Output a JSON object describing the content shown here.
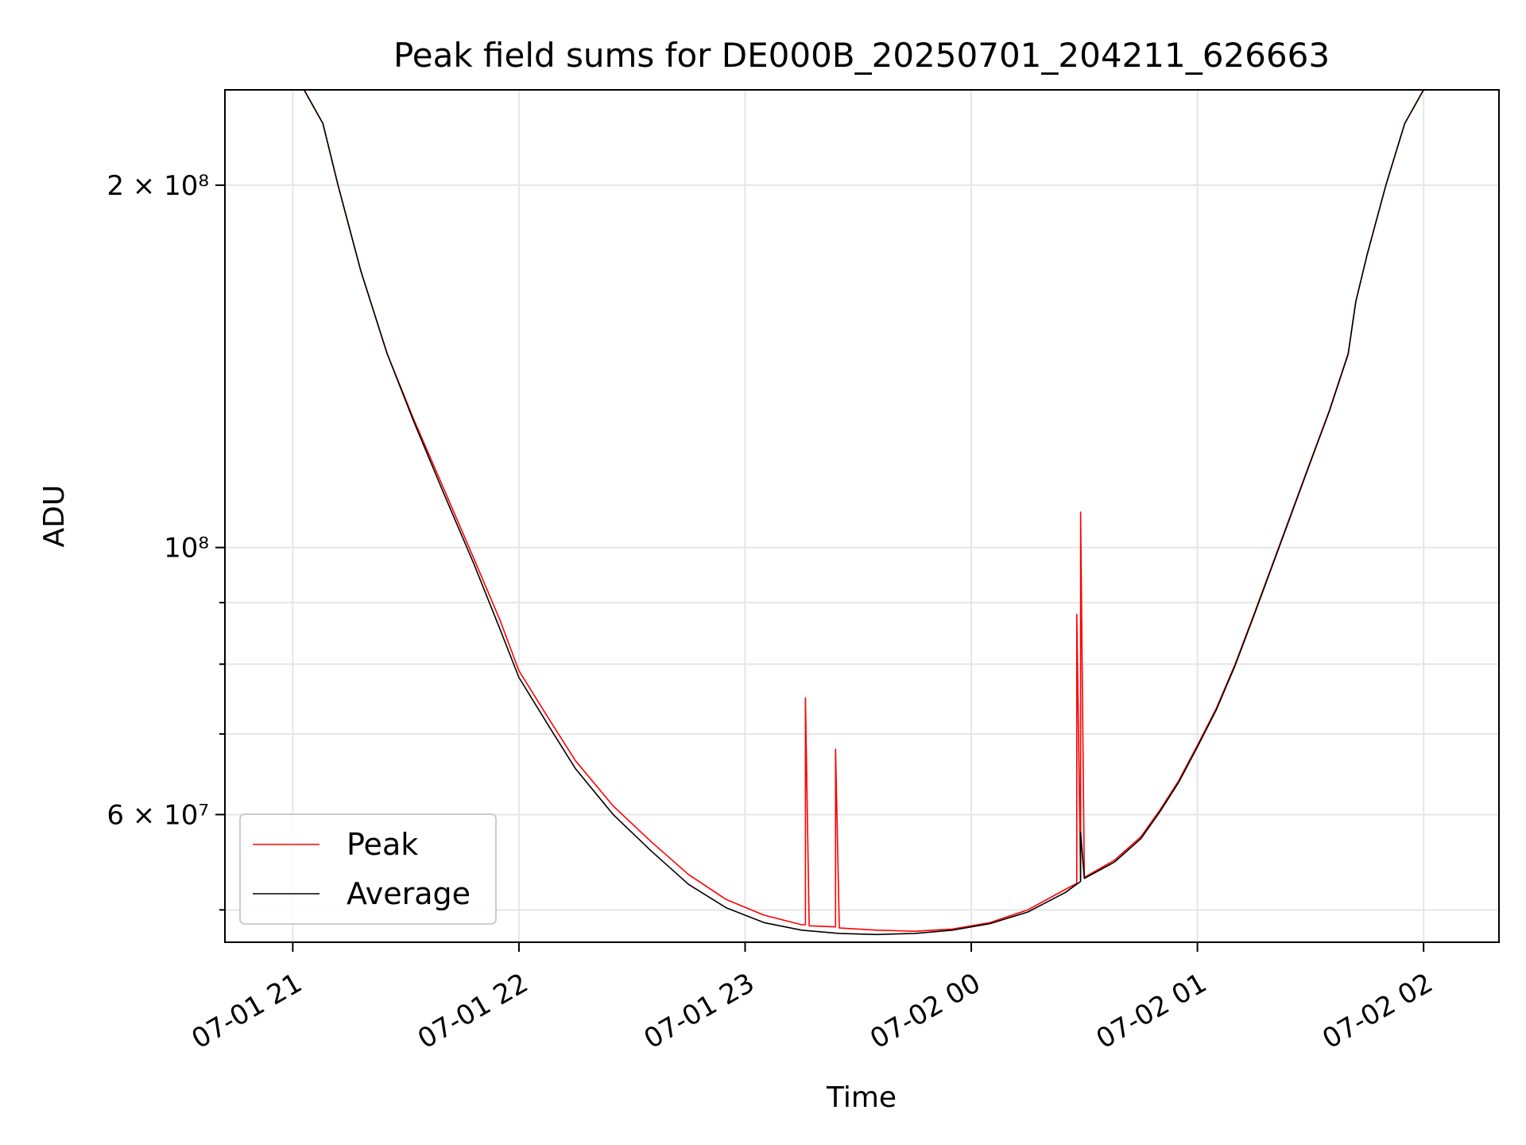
{
  "chart_data": {
    "type": "line",
    "title": "Peak field sums for DE000B_20250701_204211_626663",
    "xlabel": "Time",
    "ylabel": "ADU",
    "y_scale": "log",
    "grid": true,
    "legend_position": "lower-left",
    "x_ticks": [
      "07-01 21",
      "07-01 22",
      "07-01 23",
      "07-02 00",
      "07-02 01",
      "07-02 02"
    ],
    "y_ticks": [
      {
        "value": 200000000,
        "label": "2 × 10⁸"
      },
      {
        "value": 100000000,
        "label": "10⁸"
      },
      {
        "value": 60000000,
        "label": "6 × 10⁷"
      }
    ],
    "xlim": [
      "2025-07-01 20:42",
      "2025-07-02 02:20"
    ],
    "ylim": [
      47000000,
      240000000
    ],
    "series": [
      {
        "name": "Peak",
        "color": "#ff0000",
        "points": [
          [
            "2025-07-01 21:03",
            240000000
          ],
          [
            "2025-07-01 21:08",
            225000000
          ],
          [
            "2025-07-01 21:12",
            200000000
          ],
          [
            "2025-07-01 21:18",
            170000000
          ],
          [
            "2025-07-01 21:25",
            145000000
          ],
          [
            "2025-07-01 21:32",
            128000000
          ],
          [
            "2025-07-01 21:40",
            112000000
          ],
          [
            "2025-07-01 21:48",
            98000000
          ],
          [
            "2025-07-01 21:55",
            87000000
          ],
          [
            "2025-07-01 22:00",
            79000000
          ],
          [
            "2025-07-01 22:08",
            72000000
          ],
          [
            "2025-07-01 22:15",
            66500000
          ],
          [
            "2025-07-01 22:25",
            61000000
          ],
          [
            "2025-07-01 22:35",
            57000000
          ],
          [
            "2025-07-01 22:45",
            53500000
          ],
          [
            "2025-07-01 22:55",
            51000000
          ],
          [
            "2025-07-01 23:05",
            49500000
          ],
          [
            "2025-07-01 23:15",
            48600000
          ],
          [
            "2025-07-01 23:16",
            48600000
          ],
          [
            "2025-07-01 23:16",
            75000000
          ],
          [
            "2025-07-01 23:17",
            48500000
          ],
          [
            "2025-07-01 23:24",
            48400000
          ],
          [
            "2025-07-01 23:24",
            68000000
          ],
          [
            "2025-07-01 23:25",
            48300000
          ],
          [
            "2025-07-01 23:35",
            48100000
          ],
          [
            "2025-07-01 23:45",
            48000000
          ],
          [
            "2025-07-01 23:55",
            48200000
          ],
          [
            "2025-07-02 00:05",
            48800000
          ],
          [
            "2025-07-02 00:15",
            50000000
          ],
          [
            "2025-07-02 00:25",
            52000000
          ],
          [
            "2025-07-02 00:28",
            52600000
          ],
          [
            "2025-07-02 00:28",
            88000000
          ],
          [
            "2025-07-02 00:29",
            53000000
          ],
          [
            "2025-07-02 00:29",
            107000000
          ],
          [
            "2025-07-02 00:30",
            53200000
          ],
          [
            "2025-07-02 00:38",
            55000000
          ],
          [
            "2025-07-02 00:45",
            57500000
          ],
          [
            "2025-07-02 00:50",
            60500000
          ],
          [
            "2025-07-02 00:55",
            64000000
          ],
          [
            "2025-07-02 01:00",
            68500000
          ],
          [
            "2025-07-02 01:05",
            73500000
          ],
          [
            "2025-07-02 01:10",
            80000000
          ],
          [
            "2025-07-02 01:15",
            88000000
          ],
          [
            "2025-07-02 01:20",
            97000000
          ],
          [
            "2025-07-02 01:25",
            107000000
          ],
          [
            "2025-07-02 01:30",
            118000000
          ],
          [
            "2025-07-02 01:35",
            130000000
          ],
          [
            "2025-07-02 01:40",
            145000000
          ],
          [
            "2025-07-02 01:42",
            160000000
          ],
          [
            "2025-07-02 01:45",
            175000000
          ],
          [
            "2025-07-02 01:50",
            200000000
          ],
          [
            "2025-07-02 01:55",
            225000000
          ],
          [
            "2025-07-02 02:00",
            240000000
          ]
        ]
      },
      {
        "name": "Average",
        "color": "#000000",
        "points": [
          [
            "2025-07-01 21:03",
            240000000
          ],
          [
            "2025-07-01 21:08",
            225000000
          ],
          [
            "2025-07-01 21:12",
            200000000
          ],
          [
            "2025-07-01 21:18",
            170000000
          ],
          [
            "2025-07-01 21:25",
            145000000
          ],
          [
            "2025-07-01 21:32",
            127500000
          ],
          [
            "2025-07-01 21:40",
            111000000
          ],
          [
            "2025-07-01 21:48",
            97000000
          ],
          [
            "2025-07-01 21:55",
            85500000
          ],
          [
            "2025-07-01 22:00",
            78000000
          ],
          [
            "2025-07-01 22:08",
            71000000
          ],
          [
            "2025-07-01 22:15",
            65500000
          ],
          [
            "2025-07-01 22:25",
            60000000
          ],
          [
            "2025-07-01 22:35",
            56000000
          ],
          [
            "2025-07-01 22:45",
            52500000
          ],
          [
            "2025-07-01 22:55",
            50200000
          ],
          [
            "2025-07-01 23:05",
            48800000
          ],
          [
            "2025-07-01 23:15",
            48100000
          ],
          [
            "2025-07-01 23:25",
            47800000
          ],
          [
            "2025-07-01 23:35",
            47700000
          ],
          [
            "2025-07-01 23:45",
            47800000
          ],
          [
            "2025-07-01 23:55",
            48100000
          ],
          [
            "2025-07-02 00:05",
            48700000
          ],
          [
            "2025-07-02 00:15",
            49800000
          ],
          [
            "2025-07-02 00:25",
            51700000
          ],
          [
            "2025-07-02 00:29",
            52800000
          ],
          [
            "2025-07-02 00:29",
            58000000
          ],
          [
            "2025-07-02 00:30",
            53100000
          ],
          [
            "2025-07-02 00:38",
            54800000
          ],
          [
            "2025-07-02 00:45",
            57300000
          ],
          [
            "2025-07-02 00:50",
            60300000
          ],
          [
            "2025-07-02 00:55",
            63800000
          ],
          [
            "2025-07-02 01:00",
            68300000
          ],
          [
            "2025-07-02 01:05",
            73300000
          ],
          [
            "2025-07-02 01:10",
            79800000
          ],
          [
            "2025-07-02 01:15",
            87800000
          ],
          [
            "2025-07-02 01:20",
            96800000
          ],
          [
            "2025-07-02 01:25",
            106800000
          ],
          [
            "2025-07-02 01:30",
            117800000
          ],
          [
            "2025-07-02 01:35",
            129800000
          ],
          [
            "2025-07-02 01:40",
            144800000
          ],
          [
            "2025-07-02 01:42",
            160000000
          ],
          [
            "2025-07-02 01:45",
            175000000
          ],
          [
            "2025-07-02 01:50",
            200000000
          ],
          [
            "2025-07-02 01:55",
            225000000
          ],
          [
            "2025-07-02 02:00",
            240000000
          ]
        ]
      }
    ]
  }
}
